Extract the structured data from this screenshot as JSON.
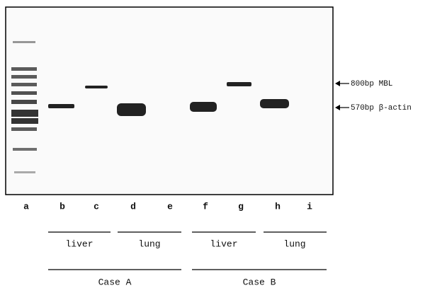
{
  "lanes": [
    "a",
    "b",
    "c",
    "d",
    "e",
    "f",
    "g",
    "h",
    "i"
  ],
  "tissues": [
    "liver",
    "lung",
    "liver",
    "lung"
  ],
  "cases": [
    "Case A",
    "Case B"
  ],
  "markers": [
    "800bp MBL",
    "570bp β-actin"
  ]
}
